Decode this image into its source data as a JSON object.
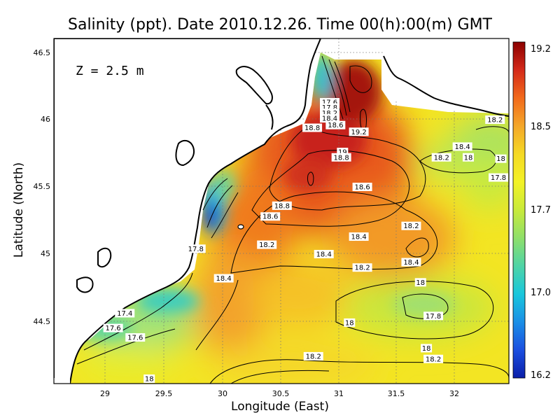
{
  "title": "Salinity (ppt). Date 2010.12.26. Time 00(h):00(m) GMT",
  "depth_label": "Z = 2.5 m",
  "xlabel": "Longitude (East)",
  "ylabel": "Latitude (North)",
  "colorbar": {
    "min": 16.2,
    "max": 19.2,
    "tick_labels": [
      "19.2",
      "18.5",
      "17.7",
      "17.0",
      "16.2"
    ],
    "colors": [
      "#8b0000",
      "#d42a1a",
      "#f26a1b",
      "#f4a72a",
      "#f5d924",
      "#f3f226",
      "#c8ea3a",
      "#8fdf6a",
      "#4fd4a6",
      "#19c7dc",
      "#1a8fe6",
      "#1b4fe0",
      "#0a1ea8"
    ]
  },
  "chart_data": {
    "type": "heatmap",
    "title": "Salinity (ppt). Date 2010.12.26. Time 00(h):00(m) GMT",
    "xlabel": "Longitude (East)",
    "ylabel": "Latitude (North)",
    "xlim": [
      28.55,
      32.45
    ],
    "ylim": [
      44.0,
      46.55
    ],
    "x_ticks": [
      "29",
      "29.5",
      "30",
      "30.5",
      "31",
      "31.5",
      "32"
    ],
    "y_ticks": [
      "44.5",
      "45",
      "45.5",
      "46",
      "46.5"
    ],
    "grid": true,
    "contour_labels": [
      {
        "text": "17.6",
        "lon": 30.93,
        "lat": 46.13
      },
      {
        "text": "17.8",
        "lon": 30.93,
        "lat": 46.09
      },
      {
        "text": "18.2",
        "lon": 30.93,
        "lat": 46.05
      },
      {
        "text": "18.4",
        "lon": 30.93,
        "lat": 46.01
      },
      {
        "text": "18.6",
        "lon": 30.98,
        "lat": 45.96
      },
      {
        "text": "18.8",
        "lon": 30.78,
        "lat": 45.94
      },
      {
        "text": "19.2",
        "lon": 31.18,
        "lat": 45.91
      },
      {
        "text": "19",
        "lon": 31.04,
        "lat": 45.76
      },
      {
        "text": "18.8",
        "lon": 31.03,
        "lat": 45.72
      },
      {
        "text": "18.6",
        "lon": 31.21,
        "lat": 45.5
      },
      {
        "text": "18.4",
        "lon": 32.07,
        "lat": 45.8
      },
      {
        "text": "18.2",
        "lon": 32.35,
        "lat": 46.0
      },
      {
        "text": "18.2",
        "lon": 31.89,
        "lat": 45.72
      },
      {
        "text": "18",
        "lon": 32.12,
        "lat": 45.72
      },
      {
        "text": "18",
        "lon": 32.4,
        "lat": 45.71
      },
      {
        "text": "17.8",
        "lon": 32.4,
        "lat": 45.57
      },
      {
        "text": "18.8",
        "lon": 30.52,
        "lat": 45.36
      },
      {
        "text": "18.6",
        "lon": 30.42,
        "lat": 45.28
      },
      {
        "text": "18.2",
        "lon": 31.63,
        "lat": 45.21
      },
      {
        "text": "18.4",
        "lon": 31.18,
        "lat": 45.13
      },
      {
        "text": "18.2",
        "lon": 30.39,
        "lat": 45.07
      },
      {
        "text": "18.4",
        "lon": 30.88,
        "lat": 45.0
      },
      {
        "text": "18.4",
        "lon": 31.63,
        "lat": 44.94
      },
      {
        "text": "17.8",
        "lon": 29.78,
        "lat": 45.04
      },
      {
        "text": "18.2",
        "lon": 31.21,
        "lat": 44.9
      },
      {
        "text": "18.4",
        "lon": 30.02,
        "lat": 44.82
      },
      {
        "text": "18",
        "lon": 31.71,
        "lat": 44.79
      },
      {
        "text": "17.4",
        "lon": 29.17,
        "lat": 44.56
      },
      {
        "text": "17.8",
        "lon": 31.82,
        "lat": 44.54
      },
      {
        "text": "17.6",
        "lon": 29.07,
        "lat": 44.45
      },
      {
        "text": "18",
        "lon": 31.1,
        "lat": 44.49
      },
      {
        "text": "17.6",
        "lon": 29.26,
        "lat": 44.38
      },
      {
        "text": "18",
        "lon": 31.76,
        "lat": 44.3
      },
      {
        "text": "18.2",
        "lon": 30.79,
        "lat": 44.24
      },
      {
        "text": "18.2",
        "lon": 31.82,
        "lat": 44.22
      },
      {
        "text": "18",
        "lon": 29.38,
        "lat": 44.06
      }
    ]
  }
}
